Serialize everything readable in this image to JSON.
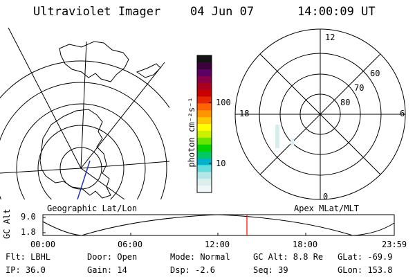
{
  "header": {
    "instrument": "Ultraviolet Imager",
    "date": "04 Jun 07",
    "time": "14:00:09 UT"
  },
  "colorbar": {
    "unit_label": "photon cm⁻²s⁻¹",
    "ticks": [
      "100",
      "10"
    ],
    "colors": [
      "#141414",
      "#3c003c",
      "#5a0064",
      "#8a0046",
      "#a8001e",
      "#c80000",
      "#e62800",
      "#ff6400",
      "#ff9600",
      "#ffc800",
      "#ffff00",
      "#c8f000",
      "#64e600",
      "#00d200",
      "#00c864",
      "#00b4c8",
      "#64dcdc",
      "#b4e6e6",
      "#dceeee",
      "#f0f5f5"
    ]
  },
  "left_map": {
    "label": "Geographic Lat/Lon"
  },
  "right_map": {
    "label": "Apex MLat/MLT",
    "mlt_labels": {
      "top": "12",
      "left": "18",
      "right": "6",
      "bottom": "0"
    },
    "lat_labels": [
      "60",
      "70",
      "80"
    ]
  },
  "altitude_plot": {
    "ylabel": "GC Alt",
    "yticks": [
      "9.0",
      "1.8"
    ],
    "xticks": [
      "00:00",
      "06:00",
      "12:00",
      "18:00",
      "23:59"
    ],
    "marker_color": "#ff0000"
  },
  "footer": {
    "filter": "Flt: LBHL",
    "door": "Door: Open",
    "mode": "Mode: Normal",
    "gc_alt": "GC Alt: 8.8 Re",
    "glat": "GLat: -69.9",
    "ip": "IP: 36.0",
    "gain": "Gain: 14",
    "dsp": "Dsp:    -2.6",
    "seq": "Seq: 39",
    "glon": "GLon: 153.8"
  }
}
